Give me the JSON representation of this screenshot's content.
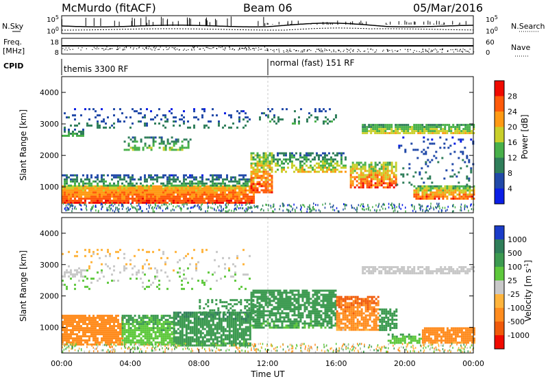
{
  "header": {
    "station": "McMurdo (fitACF)",
    "beam": "Beam 06",
    "date": "05/Mar/2016"
  },
  "status_panels": {
    "nsky_label": "N.Sky",
    "nsearch_label": "N.Search",
    "noise_ticks": [
      "10^5",
      "10^0"
    ],
    "freq_label_line1": "Freq.",
    "freq_label_line2": "[MHz]",
    "freq_ticks": [
      "18",
      "8"
    ],
    "nave_label": "Nave",
    "nave_ticks": [
      "60",
      "0"
    ],
    "cpid_label": "CPID",
    "cpid_segments": [
      {
        "label": "themis 3300 RF",
        "start_hour": 0
      },
      {
        "label": "normal (fast) 151 RF",
        "start_hour": 12
      }
    ]
  },
  "chart_data": [
    {
      "type": "heatmap",
      "name": "power-panel",
      "xlabel": "",
      "ylabel": "Slant Range [km]",
      "x_range_hours": [
        0,
        24
      ],
      "ylim": [
        180,
        4500
      ],
      "yticks": [
        "1000",
        "2000",
        "3000",
        "4000"
      ],
      "colorbar": {
        "label": "Power [dB]",
        "ticks": [
          "4",
          "8",
          "12",
          "16",
          "20",
          "24",
          "28"
        ],
        "colors": [
          "#0a1ee6",
          "#2149a8",
          "#2f7e5a",
          "#48b04a",
          "#c9cf2a",
          "#ff9a14",
          "#ff5a0a",
          "#f00a00"
        ]
      },
      "bands": [
        {
          "x0": 0.0,
          "x1": 11.2,
          "r0": 500,
          "r1": 1050,
          "v0": 28,
          "v1": 20,
          "density": 0.95
        },
        {
          "x0": 0.0,
          "x1": 11.0,
          "r0": 1050,
          "r1": 1400,
          "v0": 14,
          "v1": 6,
          "density": 0.55
        },
        {
          "x0": 0.0,
          "x1": 1.2,
          "r0": 2650,
          "r1": 2850,
          "v0": 14,
          "v1": 8,
          "density": 0.6
        },
        {
          "x0": 3.5,
          "x1": 7.5,
          "r0": 2200,
          "r1": 2600,
          "v0": 16,
          "v1": 8,
          "density": 0.45
        },
        {
          "x0": 0.0,
          "x1": 11.0,
          "r0": 2900,
          "r1": 3500,
          "v0": 10,
          "v1": 4,
          "density": 0.15
        },
        {
          "x0": 11.0,
          "x1": 12.3,
          "r0": 800,
          "r1": 2100,
          "v0": 28,
          "v1": 14,
          "density": 0.8
        },
        {
          "x0": 12.3,
          "x1": 16.5,
          "r0": 1500,
          "r1": 2100,
          "v0": 20,
          "v1": 8,
          "density": 0.55
        },
        {
          "x0": 16.8,
          "x1": 19.5,
          "r0": 1000,
          "r1": 1800,
          "v0": 28,
          "v1": 14,
          "density": 0.8
        },
        {
          "x0": 11.5,
          "x1": 16.0,
          "r0": 3000,
          "r1": 3500,
          "v0": 12,
          "v1": 6,
          "density": 0.2
        },
        {
          "x0": 17.5,
          "x1": 24.0,
          "r0": 2700,
          "r1": 3000,
          "v0": 20,
          "v1": 12,
          "density": 0.85
        },
        {
          "x0": 20.5,
          "x1": 24.0,
          "r0": 600,
          "r1": 1050,
          "v0": 28,
          "v1": 14,
          "density": 0.85
        },
        {
          "x0": 19.5,
          "x1": 24.0,
          "r0": 1100,
          "r1": 2600,
          "v0": 10,
          "v1": 4,
          "density": 0.12
        }
      ]
    },
    {
      "type": "heatmap",
      "name": "velocity-panel",
      "xlabel": "Time UT",
      "ylabel": "Slant Range [km]",
      "x_range_hours": [
        0,
        24
      ],
      "xticks": [
        "00:00",
        "04:00",
        "08:00",
        "12:00",
        "16:00",
        "20:00",
        "00:00"
      ],
      "ylim": [
        180,
        4500
      ],
      "yticks": [
        "1000",
        "2000",
        "3000",
        "4000"
      ],
      "colorbar": {
        "label": "Velocity [m s^-1]",
        "ticks": [
          "1000",
          "500",
          "100",
          "25",
          "-25",
          "-100",
          "-500",
          "-1000"
        ],
        "colors": [
          "#1a3cc8",
          "#2f7e5a",
          "#3c9a50",
          "#5ec83c",
          "#c8c8c8",
          "#ffb43c",
          "#ff8c1e",
          "#f05a0a",
          "#f00a00"
        ]
      },
      "bands": [
        {
          "x0": 0.0,
          "x1": 3.5,
          "r0": 450,
          "r1": 1400,
          "v0": -120,
          "v1": -300,
          "density": 0.85
        },
        {
          "x0": 3.5,
          "x1": 6.5,
          "r0": 450,
          "r1": 1400,
          "v0": 40,
          "v1": 120,
          "density": 0.8
        },
        {
          "x0": 6.5,
          "x1": 11.0,
          "r0": 450,
          "r1": 1500,
          "v0": 150,
          "v1": 500,
          "density": 0.85
        },
        {
          "x0": 8.0,
          "x1": 11.5,
          "r0": 1400,
          "r1": 1900,
          "v0": 150,
          "v1": 400,
          "density": 0.4
        },
        {
          "x0": 11.0,
          "x1": 16.0,
          "r0": 1000,
          "r1": 2200,
          "v0": 120,
          "v1": 400,
          "density": 0.75
        },
        {
          "x0": 16.0,
          "x1": 18.5,
          "r0": 900,
          "r1": 2000,
          "v0": -120,
          "v1": -600,
          "density": 0.8
        },
        {
          "x0": 18.5,
          "x1": 19.5,
          "r0": 900,
          "r1": 1600,
          "v0": 150,
          "v1": 300,
          "density": 0.7
        },
        {
          "x0": 17.5,
          "x1": 24.0,
          "r0": 2700,
          "r1": 2950,
          "v0": 10,
          "v1": -10,
          "density": 0.75
        },
        {
          "x0": 19.0,
          "x1": 21.0,
          "r0": 500,
          "r1": 800,
          "v0": 40,
          "v1": 120,
          "density": 0.6
        },
        {
          "x0": 21.0,
          "x1": 24.0,
          "r0": 500,
          "r1": 1000,
          "v0": -120,
          "v1": -400,
          "density": 0.85
        },
        {
          "x0": 0.0,
          "x1": 11.0,
          "r0": 2200,
          "r1": 3500,
          "v0": 60,
          "v1": -60,
          "density": 0.12
        },
        {
          "x0": 0.0,
          "x1": 1.2,
          "r0": 2650,
          "r1": 2850,
          "v0": 10,
          "v1": -10,
          "density": 0.6
        }
      ]
    }
  ]
}
